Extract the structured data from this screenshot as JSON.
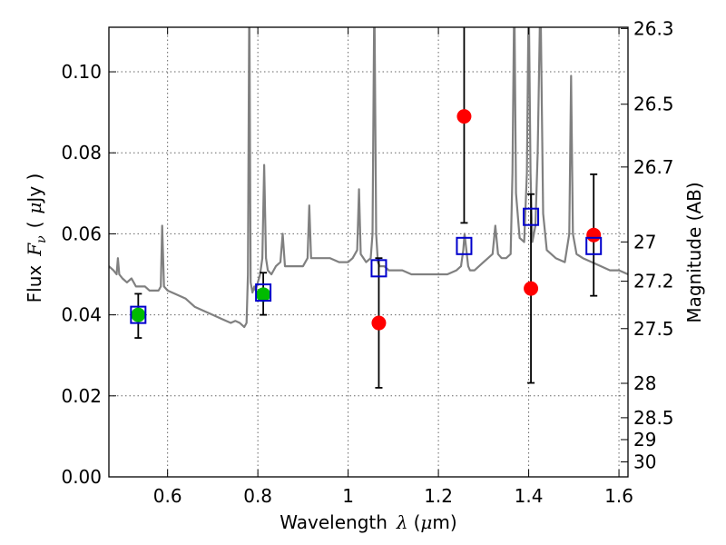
{
  "chart_data": {
    "type": "scatter",
    "title": "",
    "xlabel": {
      "pre": "Wavelength",
      "symbol": "λ",
      "open": "(",
      "unit_symbol": "μ",
      "unit": "m)"
    },
    "ylabel": {
      "pre": "Flux",
      "symbol": "F",
      "subscript": "ν",
      "open": "(",
      "unit_symbol": "μ",
      "unit": "Jy )"
    },
    "ylabel_right": "Magnitude (AB)",
    "xlim": [
      0.47,
      1.62
    ],
    "ylim": [
      0.0,
      0.111
    ],
    "grid": true,
    "x_ticks": [
      0.6,
      0.8,
      1.0,
      1.2,
      1.4,
      1.6
    ],
    "x_tick_labels": [
      "0.6",
      "0.8",
      "1",
      "1.2",
      "1.4",
      "1.6"
    ],
    "y_ticks": [
      0.0,
      0.02,
      0.04,
      0.06,
      0.08,
      0.1
    ],
    "y_tick_labels": [
      "0.00",
      "0.02",
      "0.04",
      "0.06",
      "0.08",
      "0.10"
    ],
    "right_ticks": [
      {
        "label": "26.3",
        "flux": 0.1107
      },
      {
        "label": "26.5",
        "flux": 0.092
      },
      {
        "label": "26.7",
        "flux": 0.0765
      },
      {
        "label": "27",
        "flux": 0.058
      },
      {
        "label": "27.2",
        "flux": 0.0483
      },
      {
        "label": "27.5",
        "flux": 0.0366
      },
      {
        "label": "28",
        "flux": 0.0231
      },
      {
        "label": "28.5",
        "flux": 0.0146
      },
      {
        "label": "29",
        "flux": 0.0092
      },
      {
        "label": "30",
        "flux": 0.0037
      }
    ],
    "colors": {
      "spectrum": "#808080",
      "model_boxes": "#0000cc",
      "green_points": "#00bb00",
      "red_points": "#ff0000",
      "errorbars": "#000000",
      "grid": "#666666"
    },
    "series": [
      {
        "role": "model_spectrum",
        "kind": "line",
        "x": [
          0.47,
          0.48,
          0.487,
          0.49,
          0.493,
          0.5,
          0.51,
          0.52,
          0.53,
          0.54,
          0.55,
          0.56,
          0.57,
          0.58,
          0.585,
          0.588,
          0.592,
          0.6,
          0.62,
          0.64,
          0.66,
          0.68,
          0.7,
          0.72,
          0.74,
          0.75,
          0.76,
          0.765,
          0.77,
          0.775,
          0.778,
          0.781,
          0.784,
          0.788,
          0.792,
          0.795,
          0.8,
          0.805,
          0.81,
          0.814,
          0.818,
          0.822,
          0.83,
          0.84,
          0.85,
          0.855,
          0.86,
          0.87,
          0.88,
          0.9,
          0.91,
          0.914,
          0.918,
          0.925,
          0.94,
          0.96,
          0.98,
          1.0,
          1.01,
          1.02,
          1.024,
          1.028,
          1.04,
          1.05,
          1.054,
          1.058,
          1.062,
          1.066,
          1.07,
          1.08,
          1.09,
          1.1,
          1.12,
          1.14,
          1.16,
          1.18,
          1.2,
          1.22,
          1.24,
          1.25,
          1.255,
          1.258,
          1.262,
          1.266,
          1.27,
          1.28,
          1.3,
          1.32,
          1.326,
          1.332,
          1.34,
          1.35,
          1.36,
          1.364,
          1.368,
          1.372,
          1.38,
          1.39,
          1.396,
          1.4,
          1.404,
          1.408,
          1.415,
          1.42,
          1.426,
          1.432,
          1.44,
          1.46,
          1.48,
          1.49,
          1.494,
          1.498,
          1.506,
          1.52,
          1.54,
          1.56,
          1.58,
          1.6,
          1.62
        ],
        "y": [
          0.052,
          0.051,
          0.05,
          0.054,
          0.05,
          0.049,
          0.048,
          0.049,
          0.047,
          0.047,
          0.047,
          0.046,
          0.046,
          0.046,
          0.047,
          0.062,
          0.047,
          0.046,
          0.045,
          0.044,
          0.042,
          0.041,
          0.04,
          0.039,
          0.038,
          0.0385,
          0.038,
          0.0375,
          0.037,
          0.038,
          0.05,
          0.12,
          0.048,
          0.0455,
          0.047,
          0.046,
          0.048,
          0.05,
          0.054,
          0.077,
          0.054,
          0.051,
          0.05,
          0.052,
          0.053,
          0.06,
          0.052,
          0.052,
          0.052,
          0.052,
          0.054,
          0.067,
          0.054,
          0.054,
          0.054,
          0.054,
          0.053,
          0.053,
          0.054,
          0.056,
          0.071,
          0.055,
          0.053,
          0.054,
          0.06,
          0.12,
          0.06,
          0.053,
          0.052,
          0.052,
          0.051,
          0.051,
          0.051,
          0.05,
          0.05,
          0.05,
          0.05,
          0.05,
          0.051,
          0.052,
          0.056,
          0.06,
          0.056,
          0.052,
          0.051,
          0.051,
          0.053,
          0.055,
          0.062,
          0.055,
          0.054,
          0.054,
          0.055,
          0.075,
          0.12,
          0.07,
          0.059,
          0.058,
          0.075,
          0.12,
          0.075,
          0.058,
          0.062,
          0.08,
          0.12,
          0.065,
          0.056,
          0.054,
          0.053,
          0.06,
          0.099,
          0.06,
          0.055,
          0.054,
          0.053,
          0.052,
          0.051,
          0.051,
          0.05
        ]
      },
      {
        "role": "model_photometry",
        "kind": "open_squares",
        "x": [
          0.535,
          0.812,
          1.068,
          1.257,
          1.405,
          1.544
        ],
        "y": [
          0.04,
          0.0455,
          0.0515,
          0.057,
          0.0642,
          0.057
        ]
      },
      {
        "role": "detections",
        "kind": "points_with_errorbars",
        "x": [
          0.535,
          0.812
        ],
        "y": [
          0.04,
          0.045
        ],
        "yerr_low": [
          0.0057,
          0.005
        ],
        "yerr_high": [
          0.0052,
          0.0054
        ]
      },
      {
        "role": "low_significance",
        "kind": "points_with_errorbars",
        "x": [
          1.068,
          1.257,
          1.405,
          1.544
        ],
        "y": [
          0.038,
          0.089,
          0.0465,
          0.0597
        ],
        "yerr_low": [
          0.016,
          0.0263,
          0.0233,
          0.015
        ],
        "yerr_high": [
          0.016,
          0.03,
          0.0233,
          0.015
        ]
      }
    ]
  }
}
